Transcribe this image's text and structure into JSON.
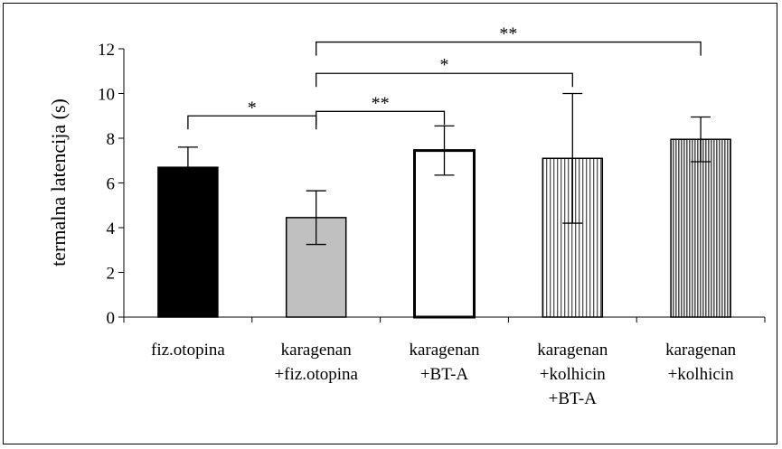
{
  "chart_data": {
    "type": "bar",
    "ylabel": "termalna latencija (s)",
    "ylim": [
      0,
      12
    ],
    "yticks": [
      "0",
      "2",
      "4",
      "6",
      "8",
      "10",
      "12"
    ],
    "grid": false,
    "categories": [
      [
        "fiz.otopina"
      ],
      [
        "karagenan",
        "+fiz.otopina"
      ],
      [
        "karagenan",
        "+BT-A"
      ],
      [
        "karagenan",
        "+kolhicin",
        "+BT-A"
      ],
      [
        "karagenan",
        "+kolhicin"
      ]
    ],
    "values": [
      6.7,
      4.45,
      7.45,
      7.1,
      7.95
    ],
    "errors": [
      0.9,
      1.2,
      1.1,
      2.9,
      1.0
    ],
    "colors": [
      "#000000",
      "#c0c0c0",
      "#ffffff",
      "striped-light",
      "striped-dark"
    ],
    "significance": [
      {
        "from": 0,
        "to": 1,
        "label": "*",
        "level": 9.0
      },
      {
        "from": 1,
        "to": 2,
        "label": "**",
        "level": 9.2
      },
      {
        "from": 1,
        "to": 3,
        "label": "*",
        "level": 10.9
      },
      {
        "from": 1,
        "to": 4,
        "label": "**",
        "level": 12.3
      }
    ]
  }
}
